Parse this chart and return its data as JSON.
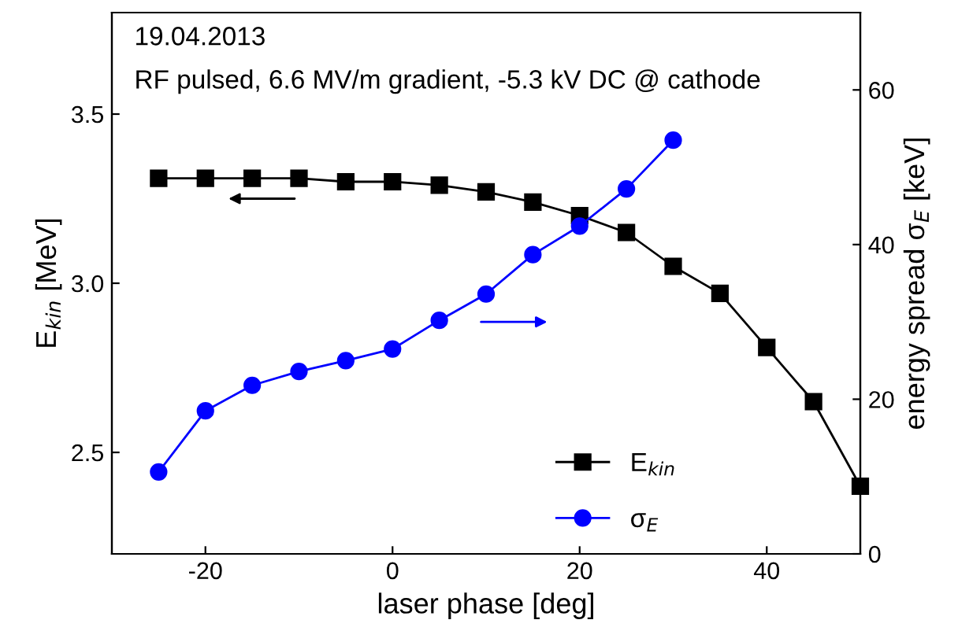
{
  "chart_data": {
    "type": "line",
    "xlabel": "laser phase [deg]",
    "ylabel": "E$_{kin}$ [MeV]",
    "y2label": "energy spread σ$_{E}$ [keV]",
    "annotations": [
      "19.04.2013",
      "RF pulsed, 6.6 MV/m gradient, -5.3 kV DC @ cathode"
    ],
    "x": [
      -25,
      -20,
      -15,
      -10,
      -5,
      0,
      5,
      10,
      15,
      20,
      25,
      30,
      35,
      40,
      45,
      50
    ],
    "series": [
      {
        "name": "E$_{kin}$",
        "color": "#000000",
        "marker": "square",
        "values": [
          3.31,
          3.31,
          3.31,
          3.31,
          3.3,
          3.3,
          3.29,
          3.27,
          3.24,
          3.2,
          3.15,
          3.05,
          2.97,
          2.81,
          2.65,
          2.4
        ]
      },
      {
        "name": "σ$_{E}$",
        "color": "#0000ff",
        "marker": "circle",
        "axis": "y2",
        "x": [
          -25,
          -20,
          -15,
          -10,
          -5,
          0,
          5,
          10,
          15,
          20,
          25,
          30
        ],
        "values": [
          10.6,
          18.5,
          21.8,
          23.6,
          25.0,
          26.5,
          30.2,
          33.6,
          38.7,
          42.4,
          47.2,
          53.5
        ]
      }
    ],
    "xlim": [
      -30,
      50
    ],
    "xticks": [
      -20,
      0,
      20,
      40
    ],
    "ylim": [
      2.2,
      3.8
    ],
    "yticks": [
      2.5,
      {
        "value": 3,
        "label": "3.0"
      },
      3.5
    ],
    "y2lim": [
      0,
      70
    ],
    "y2ticks": [
      0,
      20,
      40,
      60
    ],
    "grid": false,
    "legend": "bottom right",
    "line_style": "solid"
  }
}
